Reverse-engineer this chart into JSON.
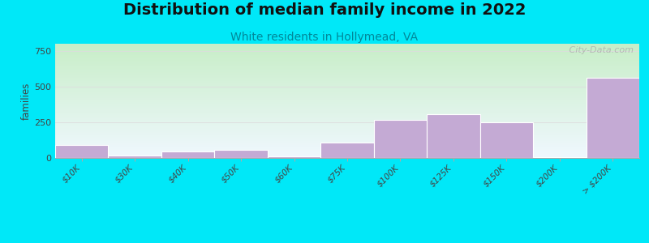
{
  "title": "Distribution of median family income in 2022",
  "subtitle": "White residents in Hollymead, VA",
  "ylabel": "families",
  "background_color": "#00e8f8",
  "bar_color": "#c4aad4",
  "bar_edgecolor": "#ffffff",
  "categories": [
    "$10K",
    "$30K",
    "$40K",
    "$50K",
    "$60K",
    "$75K",
    "$100K",
    "$125K",
    "$150K",
    "$200K",
    "> $200K"
  ],
  "values": [
    90,
    15,
    45,
    58,
    10,
    110,
    265,
    305,
    250,
    5,
    560
  ],
  "ylim": [
    0,
    800
  ],
  "yticks": [
    0,
    250,
    500,
    750
  ],
  "title_fontsize": 14,
  "subtitle_fontsize": 10,
  "watermark": " City-Data.com",
  "gradient_top": "#c8eec8",
  "gradient_bottom": "#f0f8ff"
}
